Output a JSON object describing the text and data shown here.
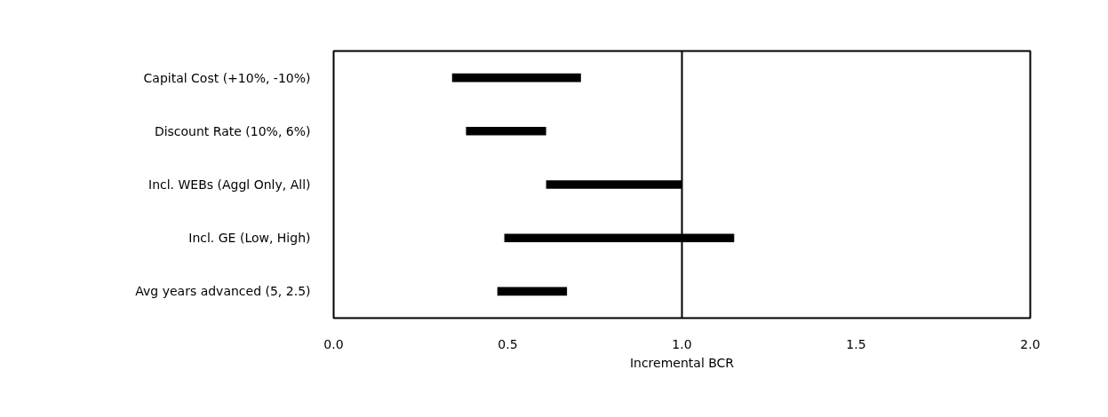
{
  "chart_data": {
    "type": "bar",
    "orientation": "horizontal",
    "xlabel": "Incremental BCR",
    "categories": [
      "Capital Cost (+10%, -10%)",
      "Discount Rate (10%, 6%)",
      "Incl. WEBs (Aggl Only, All)",
      "Incl. GE (Low, High)",
      "Avg years advanced (5, 2.5)"
    ],
    "base": [
      0.34,
      0.38,
      0.61,
      0.49,
      0.47
    ],
    "values": [
      0.37,
      0.23,
      0.39,
      0.66,
      0.2
    ],
    "color": "#000000",
    "xlim": [
      0,
      2
    ],
    "xticks": [
      {
        "value": 0,
        "label": "0.0"
      },
      {
        "value": 0.5,
        "label": "0.5"
      },
      {
        "value": 1,
        "label": "1.0"
      },
      {
        "value": 1.5,
        "label": "1.5"
      },
      {
        "value": 2,
        "label": "2.0"
      }
    ],
    "ref_lines": [
      {
        "axis": "x",
        "value": 1,
        "label": null,
        "color": "#000000"
      }
    ],
    "grid": false
  }
}
